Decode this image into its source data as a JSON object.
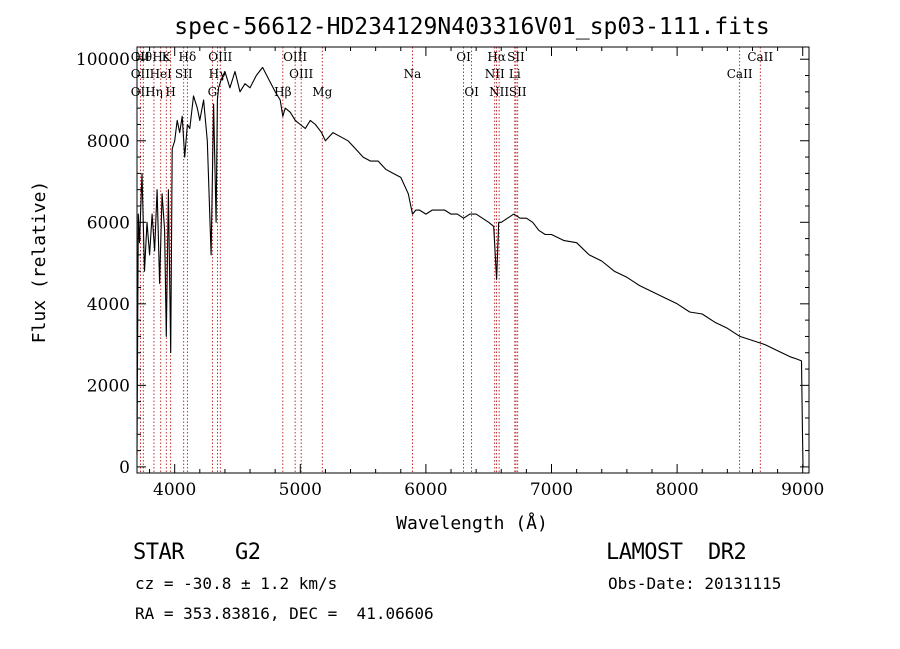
{
  "chart_data": {
    "type": "line",
    "title": "spec-56612-HD234129N403316V01_sp03-111.fits",
    "xlabel": "Wavelength (Å)",
    "ylabel": "Flux (relative)",
    "xlim": [
      3700,
      9050
    ],
    "ylim": [
      -150,
      10300
    ],
    "x_ticks": [
      4000,
      5000,
      6000,
      7000,
      8000,
      9000
    ],
    "y_ticks": [
      0,
      2000,
      4000,
      6000,
      8000,
      10000
    ],
    "grid": false,
    "series": [
      {
        "x": [
          3700,
          3710,
          3720,
          3740,
          3760,
          3780,
          3800,
          3820,
          3840,
          3860,
          3880,
          3900,
          3920,
          3933,
          3950,
          3968,
          3980,
          4000,
          4020,
          4040,
          4060,
          4080,
          4101,
          4120,
          4150,
          4180,
          4200,
          4230,
          4260,
          4290,
          4310,
          4330,
          4340,
          4350,
          4370,
          4400,
          4440,
          4480,
          4520,
          4560,
          4600,
          4650,
          4700,
          4750,
          4800,
          4840,
          4861,
          4880,
          4920,
          4960,
          5000,
          5040,
          5080,
          5120,
          5170,
          5200,
          5260,
          5320,
          5380,
          5440,
          5500,
          5560,
          5620,
          5680,
          5740,
          5800,
          5860,
          5893,
          5920,
          5950,
          6000,
          6050,
          6100,
          6150,
          6200,
          6250,
          6300,
          6350,
          6400,
          6450,
          6500,
          6540,
          6563,
          6580,
          6600,
          6650,
          6700,
          6750,
          6800,
          6850,
          6900,
          6950,
          7000,
          7100,
          7200,
          7300,
          7400,
          7500,
          7600,
          7700,
          7800,
          7900,
          8000,
          8100,
          8200,
          8300,
          8400,
          8500,
          8600,
          8700,
          8800,
          8900,
          8950,
          8990,
          8998,
          9002,
          9010
        ],
        "y": [
          300,
          6200,
          5500,
          7200,
          4800,
          6000,
          5200,
          6200,
          5300,
          6800,
          4500,
          6700,
          5800,
          3200,
          6800,
          2800,
          7800,
          8000,
          8500,
          8200,
          8600,
          7600,
          8400,
          8300,
          9100,
          8800,
          8500,
          9000,
          8000,
          5200,
          8900,
          6000,
          9000,
          9300,
          9500,
          9700,
          9300,
          9700,
          9200,
          9400,
          9300,
          9600,
          9800,
          9500,
          9200,
          9000,
          8600,
          8800,
          8700,
          8500,
          8400,
          8300,
          8500,
          8400,
          8200,
          8000,
          8200,
          8100,
          8000,
          7800,
          7600,
          7500,
          7500,
          7300,
          7200,
          7100,
          6700,
          6200,
          6300,
          6300,
          6200,
          6300,
          6300,
          6300,
          6200,
          6200,
          6100,
          6200,
          6200,
          6100,
          6000,
          5900,
          4600,
          6000,
          6000,
          6100,
          6200,
          6100,
          6100,
          6000,
          5800,
          5700,
          5700,
          5550,
          5500,
          5200,
          5050,
          4800,
          4650,
          4450,
          4300,
          4150,
          4000,
          3800,
          3750,
          3550,
          3400,
          3200,
          3100,
          3000,
          2850,
          2700,
          2650,
          2600,
          800,
          0,
          0
        ]
      }
    ],
    "lines_top_row1": [
      {
        "wl": 3727,
        "label": "OII"
      },
      {
        "wl": 3889,
        "label": "Hε"
      },
      {
        "wl": 4101,
        "label": "Hδ"
      },
      {
        "wl": 4363,
        "label": "OIII"
      },
      {
        "wl": 4959,
        "label": "OIII"
      },
      {
        "wl": 6300,
        "label": "OI"
      },
      {
        "wl": 6563,
        "label": "Hα"
      },
      {
        "wl": 6717,
        "label": "SII"
      },
      {
        "wl": 8662,
        "label": "CaII"
      }
    ],
    "lines_top_row2": [
      {
        "wl": 3727,
        "label": "OII"
      },
      {
        "wl": 3889,
        "label": "HeI"
      },
      {
        "wl": 4072,
        "label": "SII"
      },
      {
        "wl": 4340,
        "label": "Hγ"
      },
      {
        "wl": 5007,
        "label": "OIII"
      },
      {
        "wl": 5893,
        "label": "Na"
      },
      {
        "wl": 6548,
        "label": "NII"
      },
      {
        "wl": 6708,
        "label": "Li"
      },
      {
        "wl": 8498,
        "label": "CaII"
      }
    ],
    "lines_top_row3": [
      {
        "wl": 3727,
        "label": "OII"
      },
      {
        "wl": 3835,
        "label": "Hη"
      },
      {
        "wl": 3968,
        "label": "H"
      },
      {
        "wl": 4300,
        "label": "G"
      },
      {
        "wl": 4861,
        "label": "Hβ"
      },
      {
        "wl": 5175,
        "label": "Mg"
      },
      {
        "wl": 6364,
        "label": "OI"
      },
      {
        "wl": 6583,
        "label": "NII"
      },
      {
        "wl": 6731,
        "label": "SII"
      }
    ],
    "lines_extra": [
      {
        "wl": 3933,
        "label": "K"
      },
      {
        "wl": 3750,
        "label": "Hθ"
      }
    ],
    "line_marks": [
      3727,
      3750,
      3835,
      3889,
      3933,
      3968,
      4072,
      4101,
      4300,
      4340,
      4363,
      4861,
      4959,
      5007,
      5175,
      5893,
      6300,
      6364,
      6548,
      6563,
      6583,
      6708,
      6717,
      6731,
      8498,
      8662
    ],
    "colors": {
      "axes": "#000000",
      "line": "#000000",
      "marker": "#b00000"
    }
  },
  "info": {
    "class": "STAR    G2",
    "survey": "LAMOST  DR2",
    "cz": "cz = -30.8 ± 1.2 km/s",
    "obsdate": "Obs-Date: 20131115",
    "radec": "RA = 353.83816, DEC =  41.06606"
  }
}
